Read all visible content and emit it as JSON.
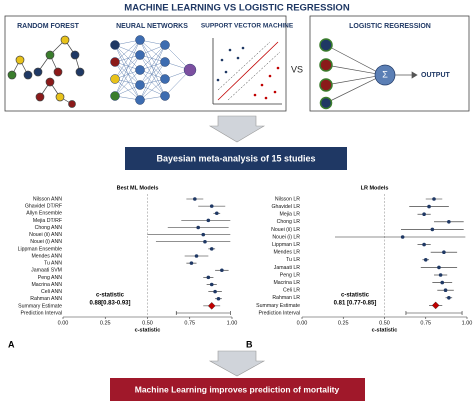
{
  "header": {
    "title": "MACHINE LEARNING VS LOGISTIC REGRESSION"
  },
  "ml_panels": [
    "RANDOM FOREST",
    "NEURAL NETWORKS",
    "SUPPORT VECTOR MACHINE"
  ],
  "vs": "VS",
  "lr_panel": {
    "title": "LOGISTIC REGRESSION",
    "symbol": "Σ",
    "output": "OUTPUT"
  },
  "step1": "Bayesian meta-analysis of 15 studies",
  "panel_letters": [
    "A",
    "B"
  ],
  "conclusion": "Machine Learning improves prediction of mortality",
  "chart_data": [
    {
      "type": "forest",
      "title": "Best ML Models",
      "xlabel": "c-statistic",
      "categories": [
        "Nilsson ANN",
        "Ghavidel DT/RF",
        "Allyn Ensemble",
        "Mejia DT/RF",
        "Chong ANN",
        "Nouei (ii) ANN",
        "Nouei (i) ANN",
        "Lippman Ensemble",
        "Mendes ANN",
        "Tu ANN",
        "Jamaati SVM",
        "Peng ANN",
        "Macrina ANN",
        "Celi ANN",
        "Rahman ANN",
        "Summary Estimate",
        "Prediction Interval"
      ],
      "values": [
        0.78,
        0.88,
        0.91,
        0.86,
        0.8,
        0.83,
        0.84,
        0.88,
        0.79,
        0.76,
        0.94,
        0.86,
        0.88,
        0.9,
        0.92,
        0.88,
        null
      ],
      "lower": [
        0.73,
        0.8,
        0.89,
        0.7,
        0.62,
        0.5,
        0.55,
        0.86,
        0.72,
        0.73,
        0.9,
        0.83,
        0.85,
        0.86,
        0.9,
        0.83,
        0.67
      ],
      "upper": [
        0.83,
        0.96,
        0.93,
        0.99,
        0.98,
        0.99,
        0.99,
        0.9,
        0.86,
        0.79,
        0.98,
        0.89,
        0.91,
        0.94,
        0.94,
        0.93,
        0.99
      ],
      "summary_label": "c-statistic",
      "summary_text": "0.88[0.83-0.93]",
      "xlim": [
        0,
        1
      ],
      "reference": 0.5,
      "xticks": [
        {
          "value": 0,
          "label": "0.00"
        },
        {
          "value": 0.25,
          "label": "0.25"
        },
        {
          "value": 0.5,
          "label": "0.50"
        },
        {
          "value": 0.75,
          "label": "0.75"
        },
        {
          "value": 1,
          "label": "1.00"
        }
      ],
      "color": "#1f3864",
      "summary_color": "#c00000"
    },
    {
      "type": "forest",
      "title": "LR Models",
      "xlabel": "c-statistic",
      "categories": [
        "Nilsson LR",
        "Ghavidel LR",
        "Mejia LR",
        "Chong LR",
        "Nouei (ii) LR",
        "Nouei (i) LR",
        "Lippman LR",
        "Mendes LR",
        "Tu LR",
        "Jamaati LR",
        "Peng LR",
        "Macrina LR",
        "Celi LR",
        "Rahman LR",
        "Summary Estimate",
        "Prediction Interval"
      ],
      "values": [
        0.8,
        0.77,
        0.74,
        0.89,
        0.79,
        0.61,
        0.74,
        0.86,
        0.75,
        0.83,
        0.84,
        0.85,
        0.87,
        0.89,
        0.81,
        null
      ],
      "lower": [
        0.75,
        0.65,
        0.7,
        0.8,
        0.6,
        0.2,
        0.7,
        0.78,
        0.73,
        0.72,
        0.8,
        0.79,
        0.82,
        0.87,
        0.77,
        0.63
      ],
      "upper": [
        0.85,
        0.89,
        0.78,
        0.98,
        0.98,
        0.99,
        0.78,
        0.94,
        0.77,
        0.94,
        0.88,
        0.91,
        0.92,
        0.91,
        0.85,
        0.97
      ],
      "summary_label": "c-statistic",
      "summary_text": "0.81 [0.77-0.85]",
      "xlim": [
        0,
        1
      ],
      "reference": 0.5,
      "xticks": [
        {
          "value": 0,
          "label": "0.00"
        },
        {
          "value": 0.25,
          "label": "0.25"
        },
        {
          "value": 0.5,
          "label": "0.50"
        },
        {
          "value": 0.75,
          "label": "0.75"
        },
        {
          "value": 1,
          "label": "1.00"
        }
      ],
      "color": "#1f3864",
      "summary_color": "#c00000"
    }
  ]
}
